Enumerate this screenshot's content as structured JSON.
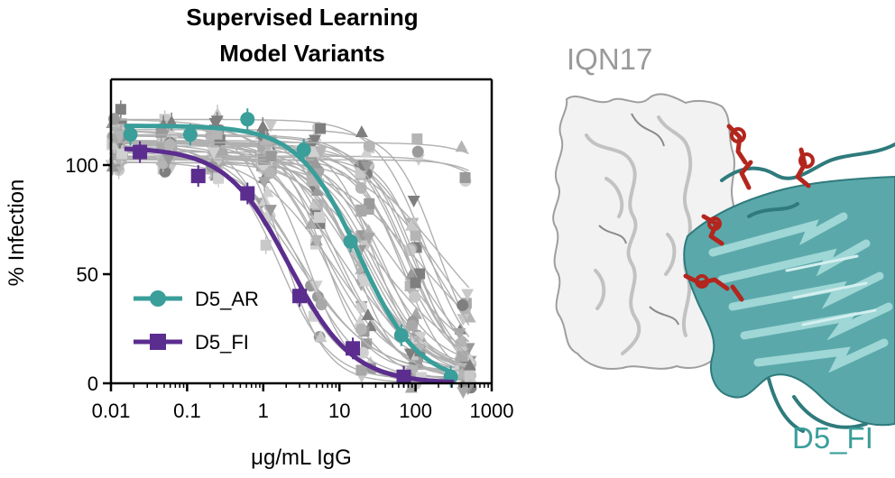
{
  "chart_data": {
    "type": "scatter",
    "title": "Supervised Learning\nModel Variants",
    "xlabel": "μg/mL IgG",
    "ylabel": "% Infection",
    "xscale": "log",
    "xlim": [
      0.01,
      1000
    ],
    "ylim": [
      0,
      135
    ],
    "x_ticks": [
      "0.01",
      "0.1",
      "1",
      "10",
      "100",
      "1000"
    ],
    "y_ticks": [
      "0",
      "50",
      "100"
    ],
    "grid": false,
    "legend_position": "bottom-left",
    "series": [
      {
        "name": "D5_AR",
        "color": "#3a9e9a",
        "marker": "circle",
        "x": [
          0.018,
          0.11,
          0.62,
          3.4,
          14,
          65,
          290
        ],
        "y": [
          114,
          114,
          121,
          107,
          65,
          22,
          3
        ],
        "fit": {
          "top": 118,
          "bottom": 0,
          "ec50": 18,
          "hill": 1.1
        }
      },
      {
        "name": "D5_FI",
        "color": "#5b2d8e",
        "marker": "square",
        "x": [
          0.024,
          0.14,
          0.62,
          3.0,
          15,
          70
        ],
        "y": [
          106,
          95,
          87,
          40,
          16,
          3
        ],
        "fit": {
          "top": 108,
          "bottom": 0,
          "ec50": 2.2,
          "hill": 1.05
        }
      }
    ]
  },
  "structure": {
    "label_top": "IQN17",
    "label_bottom": "D5_FI",
    "label_top_color": "#9a9a9a",
    "label_bottom_color": "#3a9e9a"
  }
}
